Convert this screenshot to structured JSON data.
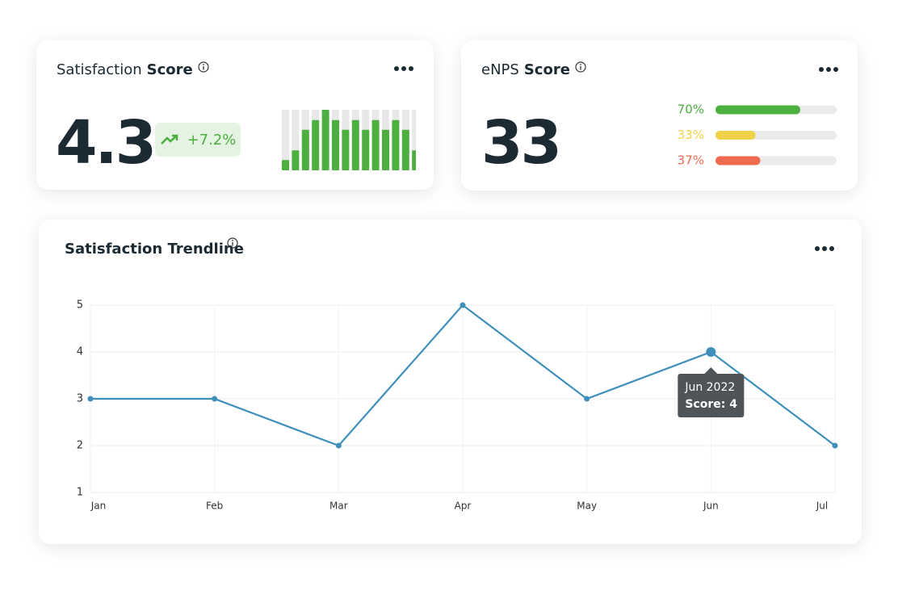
{
  "score_card": {
    "title": "Satisfaction",
    "title_bold": "Score",
    "value": 4.3,
    "change": "+7.2%"
  },
  "enps_card": {
    "title": "eNPS",
    "title_bold": "Score",
    "value": 33
  },
  "chart_data": [
    {
      "type": "bar",
      "values": [
        17,
        33,
        67,
        83,
        100,
        83,
        67,
        83,
        67,
        83,
        67,
        83,
        67,
        33
      ],
      "ylim": [
        0,
        100
      ],
      "color": "#4caf3f",
      "track_color": "#e8e8e8"
    },
    {
      "type": "hbar",
      "values": [
        70,
        33,
        37
      ],
      "value_labels": [
        "70%",
        "33%",
        "37%"
      ],
      "colors": [
        "#4caf3f",
        "#f0d24a",
        "#f06a4f"
      ],
      "xlim": [
        0,
        100
      ],
      "track_color": "#ebebeb"
    },
    {
      "type": "line",
      "title": "Satisfaction Trendline",
      "categories": [
        "Jan",
        "Feb",
        "Mar",
        "Apr",
        "May",
        "Jun",
        "Jul"
      ],
      "values": [
        3,
        3,
        2,
        5,
        3,
        4,
        2
      ],
      "color": "#3f8fbb",
      "ylim": [
        1,
        5
      ],
      "yticks": [
        1,
        2,
        3,
        4,
        5
      ],
      "grid": true,
      "tooltip": {
        "title": "Jun 2022",
        "text": "Score: 4"
      }
    }
  ]
}
